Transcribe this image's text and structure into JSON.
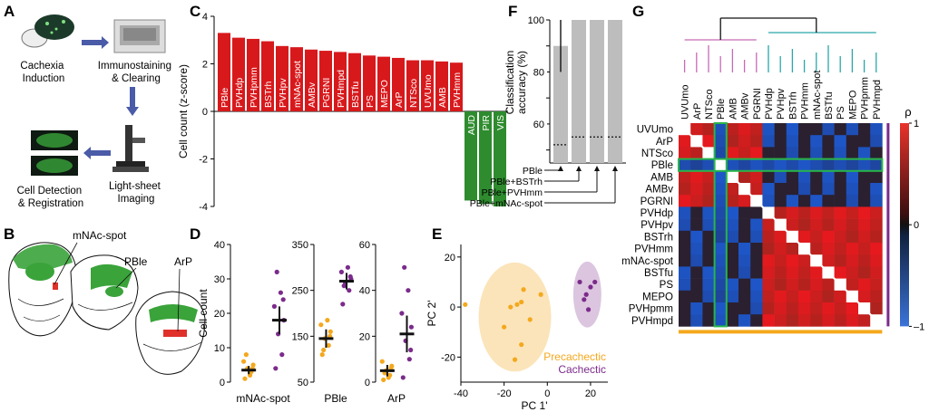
{
  "panel_letters": [
    "A",
    "B",
    "C",
    "D",
    "E",
    "F",
    "G"
  ],
  "panelA": {
    "cachexia": [
      "Cachexia",
      "Induction"
    ],
    "immuno": [
      "Immunostaining",
      "& Clearing"
    ],
    "lightsheet": [
      "Light-sheet",
      "Imaging"
    ],
    "detection": [
      "Cell Detection",
      "& Registration"
    ]
  },
  "panelB": {
    "labels": [
      "mNAc-spot",
      "PBle",
      "ArP"
    ]
  },
  "chart_data": [
    {
      "panel": "C",
      "type": "bar",
      "ylabel": "Cell count (z-score)",
      "ylim": [
        -4,
        4
      ],
      "yticks": [
        -4,
        -2,
        0,
        2,
        4
      ],
      "categories": [
        "PBle",
        "PVHdp",
        "PVHpmm",
        "BSTrh",
        "PVHpv",
        "mNAc-spot",
        "AMBv",
        "PGRNI",
        "PVHmpd",
        "BSTfu",
        "PS",
        "MEPO",
        "ArP",
        "NTSco",
        "UVUmo",
        "AMB",
        "PVHmm",
        "AUD",
        "PIR",
        "VIS"
      ],
      "values": [
        3.3,
        3.1,
        3.05,
        2.95,
        2.75,
        2.7,
        2.6,
        2.55,
        2.5,
        2.45,
        2.35,
        2.3,
        2.25,
        2.15,
        2.15,
        2.1,
        2.05,
        -3.75,
        -3.9,
        -4.0
      ],
      "colors": {
        "positive": "#d7191c",
        "negative": "#2e8b2e"
      }
    },
    {
      "panel": "D",
      "type": "scatter",
      "ylabel": "Cell count",
      "subplots": [
        {
          "name": "mNAc-spot",
          "ylim": [
            0,
            40
          ],
          "yticks": [
            0,
            10,
            20,
            30,
            40
          ],
          "precachectic": [
            1,
            3,
            4,
            5,
            6,
            2,
            8,
            4
          ],
          "cachectic": [
            4,
            8,
            14,
            18,
            22,
            26,
            32,
            24
          ],
          "means": [
            3.5,
            18
          ],
          "sems": [
            1.2,
            4
          ]
        },
        {
          "name": "PBle",
          "ylim": [
            50,
            350
          ],
          "yticks": [
            50,
            150,
            250,
            350
          ],
          "precachectic": [
            110,
            130,
            145,
            160,
            175,
            185,
            120,
            150
          ],
          "cachectic": [
            220,
            250,
            265,
            275,
            290,
            300,
            260,
            280
          ],
          "means": [
            145,
            270
          ],
          "sems": [
            20,
            18
          ]
        },
        {
          "name": "ArP",
          "ylim": [
            0,
            60
          ],
          "yticks": [
            0,
            20,
            40,
            60
          ],
          "precachectic": [
            1,
            3,
            5,
            7,
            9,
            2,
            4,
            6
          ],
          "cachectic": [
            2,
            10,
            18,
            24,
            30,
            40,
            50,
            14
          ],
          "means": [
            5,
            21
          ],
          "sems": [
            2.5,
            8
          ]
        }
      ],
      "colors": {
        "precachectic": "#f4a81d",
        "cachectic": "#7b2b8b"
      }
    },
    {
      "panel": "E",
      "type": "scatter",
      "xlabel": "PC 1'",
      "ylabel": "PC 2'",
      "xlim": [
        -40,
        28
      ],
      "ylim": [
        -30,
        25
      ],
      "xticks": [
        -40,
        -20,
        0,
        20
      ],
      "yticks": [
        -20,
        0,
        20
      ],
      "series": [
        {
          "name": "Precachectic",
          "x": [
            -38,
            -20,
            -17,
            -14,
            -12,
            -11,
            -8,
            -3,
            -12,
            -15
          ],
          "y": [
            1,
            -8,
            0,
            1,
            2,
            7,
            -5,
            5,
            -15,
            -21
          ]
        },
        {
          "name": "Cachectic",
          "x": [
            15,
            17,
            20,
            19,
            18,
            22
          ],
          "y": [
            10,
            3,
            8,
            -1,
            5,
            10
          ]
        }
      ],
      "colors": {
        "Precachectic": "#f4a81d",
        "Cachectic": "#7b2b8b"
      }
    },
    {
      "panel": "F",
      "type": "bar",
      "ylabel": "Classification accuracy (%)",
      "ylim": [
        45,
        100
      ],
      "yticks": [
        50,
        60,
        70,
        80,
        90,
        100
      ],
      "categories": [
        "PBle",
        "PBle+BSTrh",
        "PBle+PVHmm",
        "PBle+mNAc-spot"
      ],
      "values": [
        90,
        100,
        100,
        100
      ],
      "chance": [
        52,
        55,
        55,
        55
      ]
    },
    {
      "panel": "G",
      "type": "heatmap",
      "labels": [
        "UVUmo",
        "ArP",
        "NTSco",
        "PBle",
        "AMB",
        "AMBv",
        "PGRNI",
        "PVHdp",
        "PVHpv",
        "BSTrh",
        "PVHmm",
        "mNAc-spot",
        "BSTfu",
        "PS",
        "MEPO",
        "PVHpmm",
        "PVHmpd"
      ],
      "colorbar": {
        "label": "ρ",
        "ticks": [
          1,
          0,
          -1
        ]
      }
    }
  ],
  "legend": {
    "precachectic": "Precachectic",
    "cachectic": "Cachectic"
  }
}
